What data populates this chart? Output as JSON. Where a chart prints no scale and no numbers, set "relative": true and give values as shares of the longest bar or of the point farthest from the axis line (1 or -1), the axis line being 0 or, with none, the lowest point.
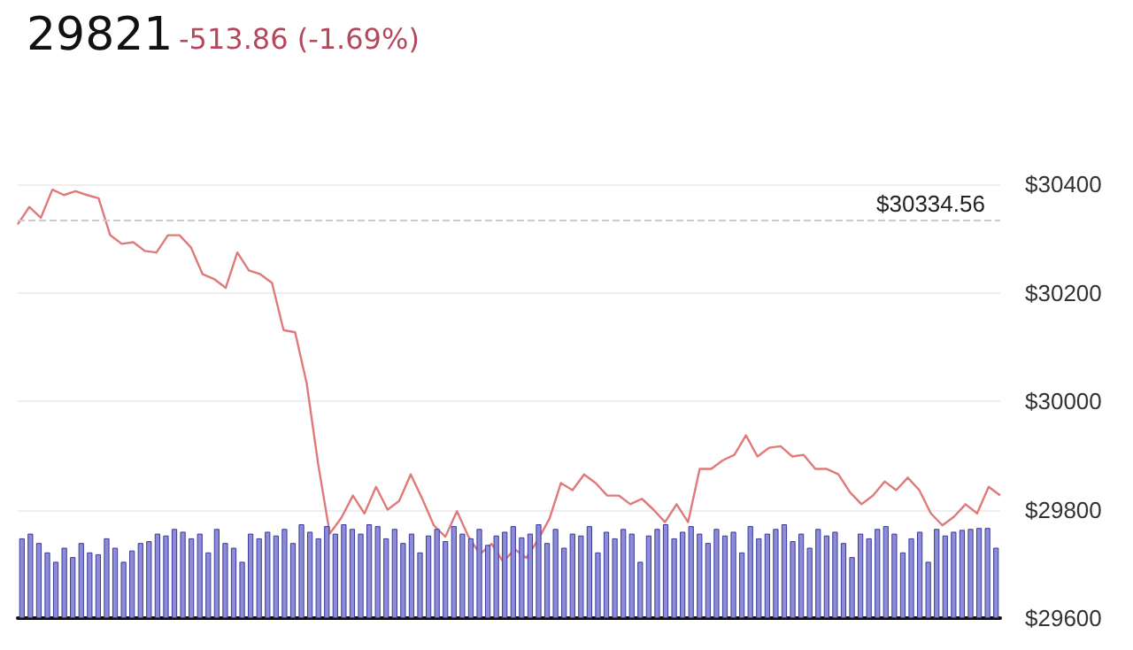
{
  "chart_data": [
    {
      "type": "line",
      "title": "29821",
      "subtitle": "-513.86 (-1.69%)",
      "categories": [
        null,
        null,
        null,
        null,
        null,
        null,
        null,
        null,
        null,
        null,
        null,
        null,
        null,
        null,
        null,
        null,
        null,
        null,
        null,
        null,
        null,
        null,
        null,
        null,
        null,
        null,
        null,
        null,
        null,
        null,
        null,
        null,
        null,
        null,
        null,
        null,
        null,
        null,
        null,
        null,
        null,
        null,
        null,
        null,
        null,
        null,
        null,
        null,
        null,
        null,
        null,
        null,
        null,
        null,
        null,
        null,
        null,
        null,
        null,
        null,
        null,
        null,
        null,
        null,
        null,
        null,
        null,
        null,
        null,
        null,
        null,
        null,
        null,
        null,
        null,
        null,
        null,
        null,
        null,
        null,
        null,
        null,
        null,
        null,
        null,
        null
      ],
      "series": [
        {
          "color": "#e07a7a",
          "values": [
            30326,
            30358,
            30338,
            30390,
            30380,
            30387,
            30380,
            30374,
            30306,
            30290,
            30293,
            30277,
            30274,
            30306,
            30306,
            30283,
            30234,
            30225,
            30209,
            30274,
            30241,
            30234,
            30218,
            30131,
            30127,
            30033,
            29883,
            29756,
            29785,
            29826,
            29793,
            29842,
            29800,
            29816,
            29865,
            29820,
            29771,
            29750,
            29797,
            29750,
            29718,
            29737,
            29704,
            29727,
            29711,
            29744,
            29783,
            29849,
            29836,
            29865,
            29849,
            29826,
            29826,
            29810,
            29820,
            29800,
            29777,
            29810,
            29777,
            29875,
            29875,
            29891,
            29901,
            29937,
            29898,
            29914,
            29917,
            29898,
            29901,
            29875,
            29875,
            29865,
            29832,
            29810,
            29826,
            29852,
            29836,
            29859,
            29836,
            29793,
            29771,
            29787,
            29810,
            29793,
            29842,
            29826
          ]
        }
      ],
      "ylim": [
        29600,
        30400
      ],
      "yticks": [
        {
          "value": 29600,
          "label": "$29600"
        },
        {
          "value": 29800,
          "label": "$29800"
        },
        {
          "value": 30000,
          "label": "$30000"
        },
        {
          "value": 30200,
          "label": "$30200"
        },
        {
          "value": 30400,
          "label": "$30400"
        }
      ],
      "ref_lines": [
        {
          "axis": "y",
          "value": 30334.56,
          "label": "$30334.56",
          "color": "#cccccc",
          "line_style": "dashed"
        }
      ],
      "grid": "y",
      "line_style": "solid",
      "tick_labels": "y"
    },
    {
      "type": "bar",
      "relative": true,
      "tick_labels": false,
      "categories": [
        null,
        null,
        null,
        null,
        null,
        null,
        null,
        null,
        null,
        null,
        null,
        null,
        null,
        null,
        null,
        null,
        null,
        null,
        null,
        null,
        null,
        null,
        null,
        null,
        null,
        null,
        null,
        null,
        null,
        null,
        null,
        null,
        null,
        null,
        null,
        null,
        null,
        null,
        null,
        null,
        null,
        null,
        null,
        null,
        null,
        null,
        null,
        null,
        null,
        null,
        null,
        null,
        null,
        null,
        null,
        null,
        null,
        null,
        null,
        null,
        null,
        null,
        null,
        null,
        null,
        null,
        null,
        null,
        null,
        null,
        null,
        null,
        null,
        null,
        null,
        null,
        null,
        null,
        null,
        null,
        null,
        null,
        null,
        null,
        null,
        null,
        null,
        null,
        null,
        null,
        null,
        null,
        null,
        null,
        null,
        null,
        null,
        null,
        null,
        null,
        null,
        null,
        null,
        null,
        null,
        null,
        null,
        null,
        null,
        null,
        null,
        null,
        null,
        null,
        null,
        null
      ],
      "series": [
        {
          "color": "#8c8cd8",
          "values": [
            0.85,
            0.9,
            0.8,
            0.7,
            0.6,
            0.75,
            0.65,
            0.8,
            0.7,
            0.68,
            0.85,
            0.75,
            0.6,
            0.72,
            0.8,
            0.82,
            0.9,
            0.88,
            0.95,
            0.92,
            0.85,
            0.9,
            0.7,
            0.95,
            0.8,
            0.75,
            0.6,
            0.9,
            0.85,
            0.92,
            0.88,
            0.95,
            0.8,
            1.0,
            0.92,
            0.85,
            0.98,
            0.9,
            1.0,
            0.95,
            0.9,
            1.0,
            0.98,
            0.85,
            0.95,
            0.8,
            0.9,
            0.7,
            0.88,
            0.95,
            0.82,
            0.98,
            0.9,
            0.85,
            0.95,
            0.78,
            0.88,
            0.92,
            0.98,
            0.86,
            0.9,
            1.0,
            0.8,
            0.95,
            0.75,
            0.9,
            0.88,
            0.98,
            0.7,
            0.92,
            0.85,
            0.95,
            0.9,
            0.6,
            0.88,
            0.95,
            1.0,
            0.85,
            0.92,
            0.98,
            0.9,
            0.8,
            0.95,
            0.88,
            0.92,
            0.7,
            0.98,
            0.85,
            0.9,
            0.95,
            1.0,
            0.82,
            0.9,
            0.75,
            0.95,
            0.88,
            0.92,
            0.8,
            0.65,
            0.9,
            0.85,
            0.95,
            0.98,
            0.9,
            0.7,
            0.85,
            0.92,
            0.6,
            0.95,
            0.88,
            0.92,
            0.94,
            0.95,
            0.96,
            0.96,
            0.75
          ]
        }
      ]
    }
  ]
}
